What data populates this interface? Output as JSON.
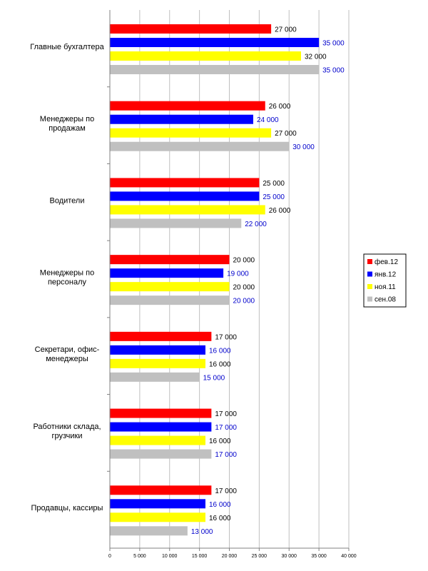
{
  "chart_data": {
    "type": "bar",
    "orientation": "horizontal",
    "categories": [
      [
        "Главные бухгалтера"
      ],
      [
        "Менеджеры по",
        "продажам"
      ],
      [
        "Водители"
      ],
      [
        "Менеджеры по",
        "персоналу"
      ],
      [
        "Секретари, офис-",
        "менеджеры"
      ],
      [
        "Работники склада,",
        "грузчики"
      ],
      [
        "Продавцы, кассиры"
      ]
    ],
    "series": [
      {
        "name": "фев.12",
        "color": "#ff0000",
        "label_color": "#000000",
        "values": [
          27000,
          26000,
          25000,
          20000,
          17000,
          17000,
          17000
        ],
        "labels": [
          "27 000",
          "26 000",
          "25 000",
          "20 000",
          "17 000",
          "17 000",
          "17 000"
        ]
      },
      {
        "name": "янв.12",
        "color": "#0000ff",
        "label_color": "#0000cc",
        "values": [
          35000,
          24000,
          25000,
          19000,
          16000,
          17000,
          16000
        ],
        "labels": [
          "35 000",
          "24 000",
          "25 000",
          "19 000",
          "16 000",
          "17 000",
          "16 000"
        ]
      },
      {
        "name": "ноя.11",
        "color": "#ffff00",
        "label_color": "#000000",
        "values": [
          32000,
          27000,
          26000,
          20000,
          16000,
          16000,
          16000
        ],
        "labels": [
          "32 000",
          "27 000",
          "26 000",
          "20 000",
          "16 000",
          "16 000",
          "16 000"
        ]
      },
      {
        "name": "сен.08",
        "color": "#c0c0c0",
        "label_color": "#0000cc",
        "values": [
          35000,
          30000,
          22000,
          20000,
          15000,
          17000,
          13000
        ],
        "labels": [
          "35 000",
          "30 000",
          "22 000",
          "20 000",
          "15 000",
          "17 000",
          "13 000"
        ]
      }
    ],
    "xlim": [
      0,
      40000
    ],
    "xticks": [
      0,
      5000,
      10000,
      15000,
      20000,
      25000,
      30000,
      35000,
      40000
    ],
    "xtick_labels": [
      "0",
      "5 000",
      "10 000",
      "15 000",
      "20 000",
      "25 000",
      "30 000",
      "35 000",
      "40 000"
    ],
    "title": "",
    "xlabel": "",
    "ylabel": "",
    "grid": true,
    "legend_position": "right"
  }
}
